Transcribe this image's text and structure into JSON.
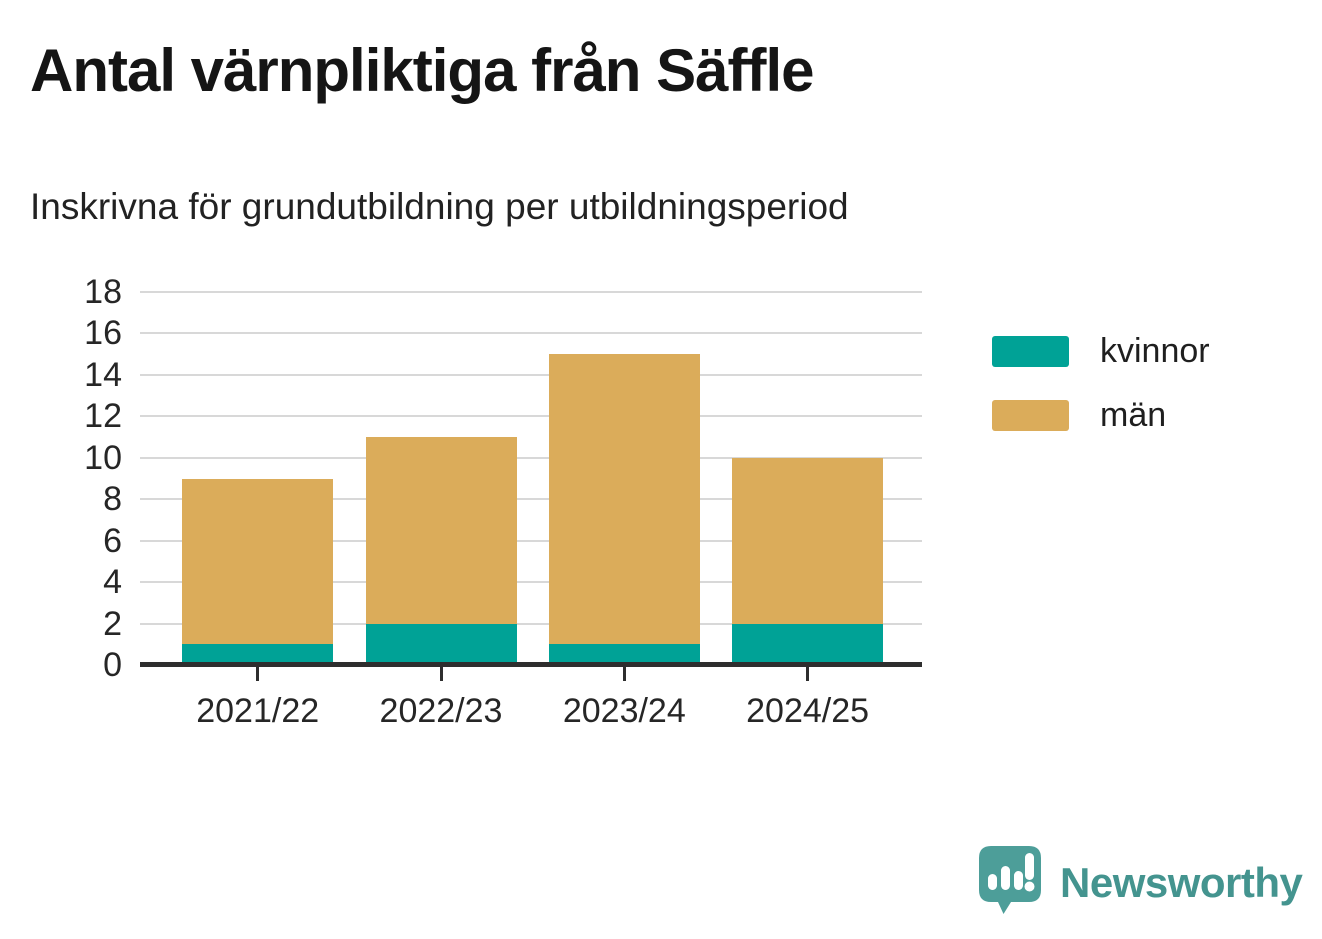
{
  "header": {
    "title": "Antal värnpliktiga från Säffle",
    "subtitle": "Inskrivna för grundutbildning per utbildningsperiod"
  },
  "chart_data": {
    "type": "bar",
    "stacked": true,
    "categories": [
      "2021/22",
      "2022/23",
      "2023/24",
      "2024/25"
    ],
    "series": [
      {
        "name": "kvinnor",
        "color": "#00a296",
        "values": [
          1,
          2,
          1,
          2
        ]
      },
      {
        "name": "män",
        "color": "#dbac5a",
        "values": [
          8,
          9,
          14,
          8
        ]
      }
    ],
    "totals": [
      9,
      11,
      15,
      10
    ],
    "title": "Antal värnpliktiga från Säffle",
    "subtitle": "Inskrivna för grundutbildning per utbildningsperiod",
    "xlabel": "",
    "ylabel": "",
    "ylim": [
      0,
      18
    ],
    "yticks": [
      0,
      2,
      4,
      6,
      8,
      10,
      12,
      14,
      16,
      18
    ],
    "grid": "horizontal",
    "legend_position": "right"
  },
  "legend": {
    "items": [
      {
        "label": "kvinnor",
        "color": "#00a296"
      },
      {
        "label": "män",
        "color": "#dbac5a"
      }
    ]
  },
  "branding": {
    "logo_text": "Newsworthy",
    "logo_color": "#44948f",
    "icon_color": "#4d9e99",
    "icon": "newsworthy-speech-bubble-chart-icon"
  },
  "colors": {
    "background": "#ffffff",
    "gridline": "#d8d8d8",
    "axis": "#2e2e2e",
    "title_text": "#151515",
    "label_text": "#262626"
  }
}
